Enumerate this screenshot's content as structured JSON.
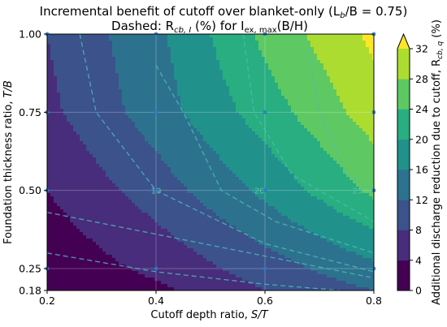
{
  "chart_data": {
    "type": "heatmap",
    "title_line1": "Incremental benefit of cutoff over blanket-only (L",
    "title_line1_sub": "b",
    "title_line1_tail": "/B = 0.75)",
    "title_line2_pre": "Dashed: R",
    "title_line2_sub1": "cb, I",
    "title_line2_mid": " (%) for I",
    "title_line2_sub2": "ex, max",
    "title_line2_tail": "(B/H)",
    "xlabel_pre": "Cutoff depth ratio, ",
    "xlabel_var": "S/T",
    "ylabel_pre": "Foundation thickness ratio, ",
    "ylabel_var": "T/B",
    "colorbar_label_pre": "Additional discharge reduction due to cutoff, R",
    "colorbar_label_sub": "cb, q",
    "colorbar_label_tail": " (%)",
    "xlim": [
      0.2,
      0.8
    ],
    "ylim": [
      0.18,
      1.0
    ],
    "x_ticks": [
      "0.2",
      "0.4",
      "0.6",
      "0.8"
    ],
    "y_ticks": [
      "0.18",
      "0.25",
      "0.50",
      "0.75",
      "1.00"
    ],
    "colorbar_ticks": [
      "0",
      "4",
      "8",
      "12",
      "16",
      "20",
      "24",
      "28",
      "32"
    ],
    "colorbar_extend": "max",
    "levels": [
      0,
      4,
      8,
      12,
      16,
      20,
      24,
      28,
      32
    ],
    "colors": [
      "#440154",
      "#472d7b",
      "#3b528b",
      "#2c728e",
      "#21918c",
      "#28ae80",
      "#5ec962",
      "#addc30",
      "#fde725"
    ],
    "grid_x": [
      0.2,
      0.4,
      0.6,
      0.8
    ],
    "grid_y": [
      0.18,
      0.25,
      0.5,
      0.75,
      1.0
    ],
    "z_values": [
      [
        0,
        3,
        8,
        12
      ],
      [
        1,
        5,
        10,
        15
      ],
      [
        4,
        10,
        17,
        25
      ],
      [
        7,
        14,
        22,
        30
      ],
      [
        8,
        15,
        25,
        33
      ]
    ],
    "dashed_contour_labels": [
      "10",
      "20",
      "25"
    ],
    "sample_points": [
      {
        "x": 0.2,
        "y": 0.25
      },
      {
        "x": 0.4,
        "y": 0.25
      },
      {
        "x": 0.6,
        "y": 0.25
      },
      {
        "x": 0.8,
        "y": 0.25
      },
      {
        "x": 0.2,
        "y": 0.5
      },
      {
        "x": 0.4,
        "y": 0.5
      },
      {
        "x": 0.6,
        "y": 0.5
      },
      {
        "x": 0.8,
        "y": 0.5
      },
      {
        "x": 0.2,
        "y": 0.75
      },
      {
        "x": 0.4,
        "y": 0.75
      },
      {
        "x": 0.6,
        "y": 0.75
      },
      {
        "x": 0.8,
        "y": 0.75
      },
      {
        "x": 0.2,
        "y": 1.0
      },
      {
        "x": 0.4,
        "y": 1.0
      },
      {
        "x": 0.6,
        "y": 1.0
      },
      {
        "x": 0.8,
        "y": 1.0
      }
    ],
    "grid": true
  }
}
